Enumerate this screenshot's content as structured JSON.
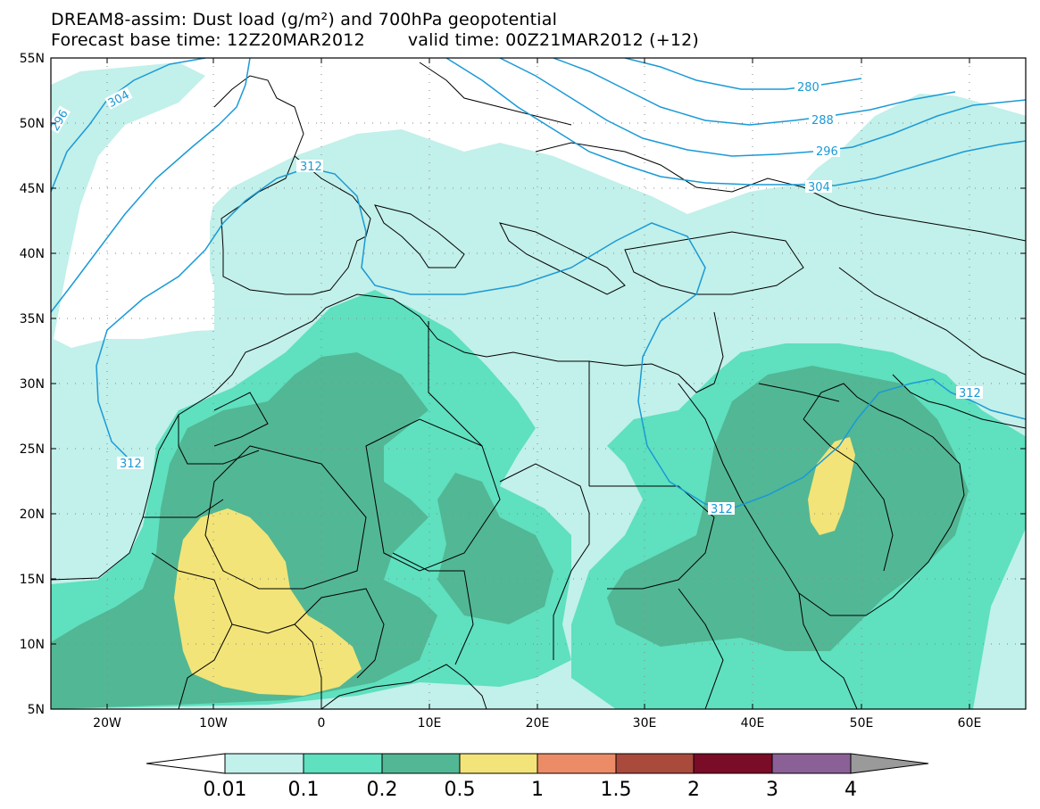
{
  "title": {
    "line1": "DREAM8-assim: Dust load (g/m²) and 700hPa geopotential",
    "line2_base": "Forecast base time: 12Z20MAR2012",
    "line2_valid": "valid time: 00Z21MAR2012 (+12)"
  },
  "map": {
    "lat_labels": [
      "55N",
      "50N",
      "45N",
      "40N",
      "35N",
      "30N",
      "25N",
      "20N",
      "15N",
      "10N",
      "5N"
    ],
    "lon_labels": [
      "20W",
      "10W",
      "0",
      "10E",
      "20E",
      "30E",
      "40E",
      "50E",
      "60E"
    ],
    "contour_labels": [
      "304",
      "296",
      "312",
      "280",
      "288",
      "296",
      "304",
      "312",
      "312",
      "312"
    ]
  },
  "colorbar": {
    "tick_labels": [
      "0.01",
      "0.1",
      "0.2",
      "0.5",
      "1",
      "1.5",
      "2",
      "3",
      "4"
    ],
    "colors": [
      "#c2f0ea",
      "#5fe0bf",
      "#52b794",
      "#f2e478",
      "#eb8c66",
      "#a94a3c",
      "#7a0c28",
      "#8a6096"
    ]
  },
  "colors": {
    "frame": "#000000",
    "contour_line": "#1a9ad6",
    "ocean": "#ffffff",
    "grid_dots": "#888888"
  }
}
